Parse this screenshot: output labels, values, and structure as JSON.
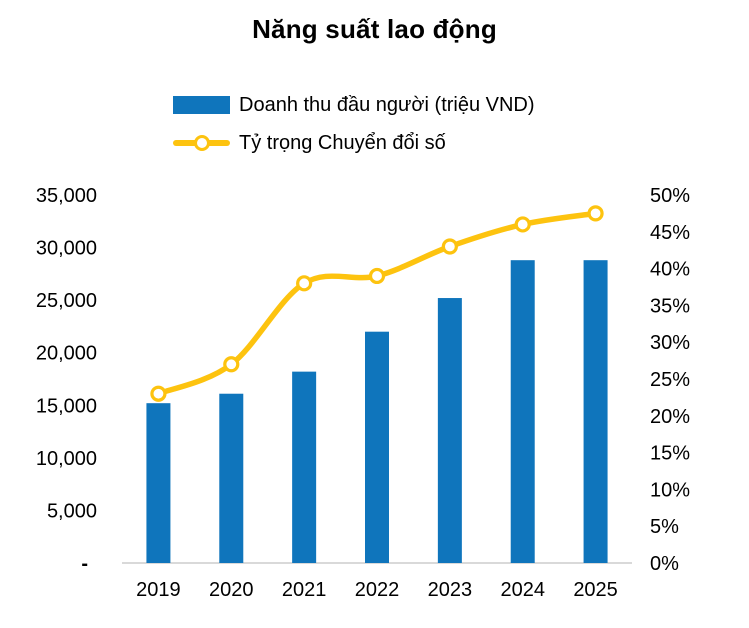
{
  "title": "Năng suất lao động",
  "legend": {
    "items": [
      {
        "label": "Doanh thu đầu người (triệu VND)",
        "marker": "bar-swatch",
        "color": "#0F75BC"
      },
      {
        "label": "Tỷ trọng Chuyển đổi số",
        "marker": "line-swatch",
        "color": "#FDC30F"
      }
    ]
  },
  "colors": {
    "bar": "#0F75BC",
    "line": "#FDC30F",
    "marker_fill": "#FFFFFF",
    "axis_line": "#D9D9D9",
    "text": "#000000",
    "background": "#FFFFFF"
  },
  "chart_data": {
    "type": "bar",
    "combo": "bar+line",
    "title": "Năng suất lao động",
    "categories": [
      "2019",
      "2020",
      "2021",
      "2022",
      "2023",
      "2024",
      "2025"
    ],
    "series": [
      {
        "name": "Doanh thu đầu người (triệu VND)",
        "type": "bar",
        "axis": "left",
        "color": "#0F75BC",
        "values": [
          15200,
          16100,
          18200,
          22000,
          25200,
          28800,
          28800
        ]
      },
      {
        "name": "Tỷ trọng Chuyển đổi số",
        "type": "line",
        "axis": "right",
        "color": "#FDC30F",
        "unit": "%",
        "values": [
          23,
          27,
          38,
          39,
          43,
          46,
          47.5
        ]
      }
    ],
    "left_axis": {
      "min": 0,
      "max": 35000,
      "step": 5000,
      "tick_labels": [
        "-",
        "5,000",
        "10,000",
        "15,000",
        "20,000",
        "25,000",
        "30,000",
        "35,000"
      ]
    },
    "right_axis": {
      "min": 0,
      "max": 50,
      "step": 5,
      "tick_labels": [
        "0%",
        "5%",
        "10%",
        "15%",
        "20%",
        "25%",
        "30%",
        "35%",
        "40%",
        "45%",
        "50%"
      ]
    },
    "grid": false,
    "legend_position": "top",
    "line_smoothing": true
  }
}
